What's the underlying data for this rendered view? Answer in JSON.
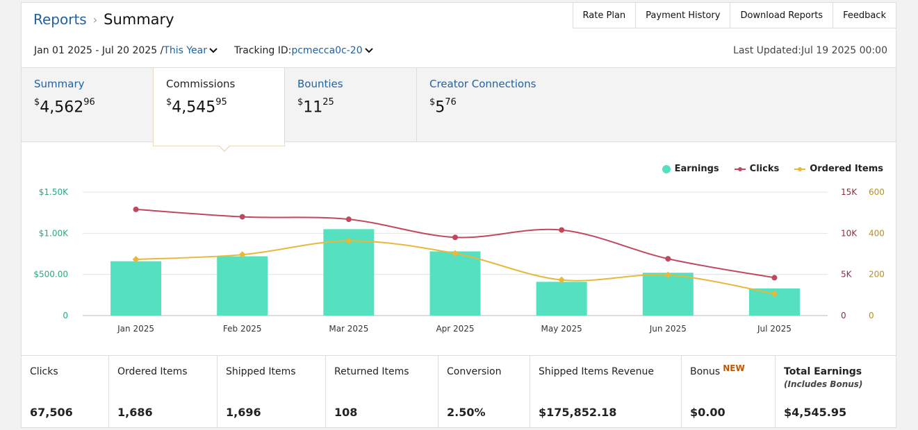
{
  "header": {
    "reports_link": "Reports",
    "separator": "›",
    "title": "Summary",
    "top_links": [
      "Rate Plan",
      "Payment History",
      "Download Reports",
      "Feedback"
    ],
    "date_range": "Jan 01 2025 - Jul 20 2025 /",
    "period": "This Year",
    "tracking_label": "Tracking ID:",
    "tracking_id": "pcmecca0c-20",
    "last_updated": "Last Updated:Jul 19 2025 00:00"
  },
  "tabs": [
    {
      "label": "Summary",
      "currency": "$",
      "whole": "4,562",
      "cents": "96",
      "active": false
    },
    {
      "label": "Commissions",
      "currency": "$",
      "whole": "4,545",
      "cents": "95",
      "active": true
    },
    {
      "label": "Bounties",
      "currency": "$",
      "whole": "11",
      "cents": "25",
      "active": false
    },
    {
      "label": "Creator Connections",
      "currency": "$",
      "whole": "5",
      "cents": "76",
      "active": false
    }
  ],
  "chart_data": {
    "type": "bar",
    "categories": [
      "Jan 2025",
      "Feb 2025",
      "Mar 2025",
      "Apr 2025",
      "May 2025",
      "Jun 2025",
      "Jul 2025"
    ],
    "series": [
      {
        "name": "Earnings",
        "kind": "bar",
        "axis": "left",
        "color": "#55e0bf",
        "values": [
          660,
          720,
          1050,
          780,
          410,
          520,
          330
        ]
      },
      {
        "name": "Clicks",
        "kind": "line",
        "axis": "right1",
        "color": "#c0485e",
        "values": [
          12900,
          12000,
          11700,
          9500,
          10400,
          6900,
          4600
        ]
      },
      {
        "name": "Ordered Items",
        "kind": "line",
        "axis": "right2",
        "color": "#e8b83a",
        "values": [
          273,
          296,
          363,
          302,
          173,
          197,
          106
        ]
      }
    ],
    "left_axis": {
      "ticks": [
        "0",
        "$500.00",
        "$1.00K",
        "$1.50K"
      ],
      "range": [
        0,
        1500
      ],
      "color": "#2aa683"
    },
    "right_axis_1": {
      "ticks": [
        "0",
        "5K",
        "10K",
        "15K"
      ],
      "range": [
        0,
        15000
      ],
      "color": "#8b2d3d"
    },
    "right_axis_2": {
      "ticks": [
        "0",
        "200",
        "400",
        "600"
      ],
      "range": [
        0,
        600
      ],
      "color": "#b8901d"
    },
    "legend_position": "top-right",
    "grid": true
  },
  "metrics": [
    {
      "label": "Clicks",
      "value": "67,506"
    },
    {
      "label": "Ordered Items",
      "value": "1,686"
    },
    {
      "label": "Shipped Items",
      "value": "1,696"
    },
    {
      "label": "Returned Items",
      "value": "108"
    },
    {
      "label": "Conversion",
      "value": "2.50%"
    },
    {
      "label": "Shipped Items Revenue",
      "value": "$175,852.18"
    },
    {
      "label": "Bonus",
      "badge": "NEW",
      "value": "$0.00"
    },
    {
      "label": "Total Earnings",
      "sub": "(Includes Bonus)",
      "value": "$4,545.95"
    }
  ]
}
